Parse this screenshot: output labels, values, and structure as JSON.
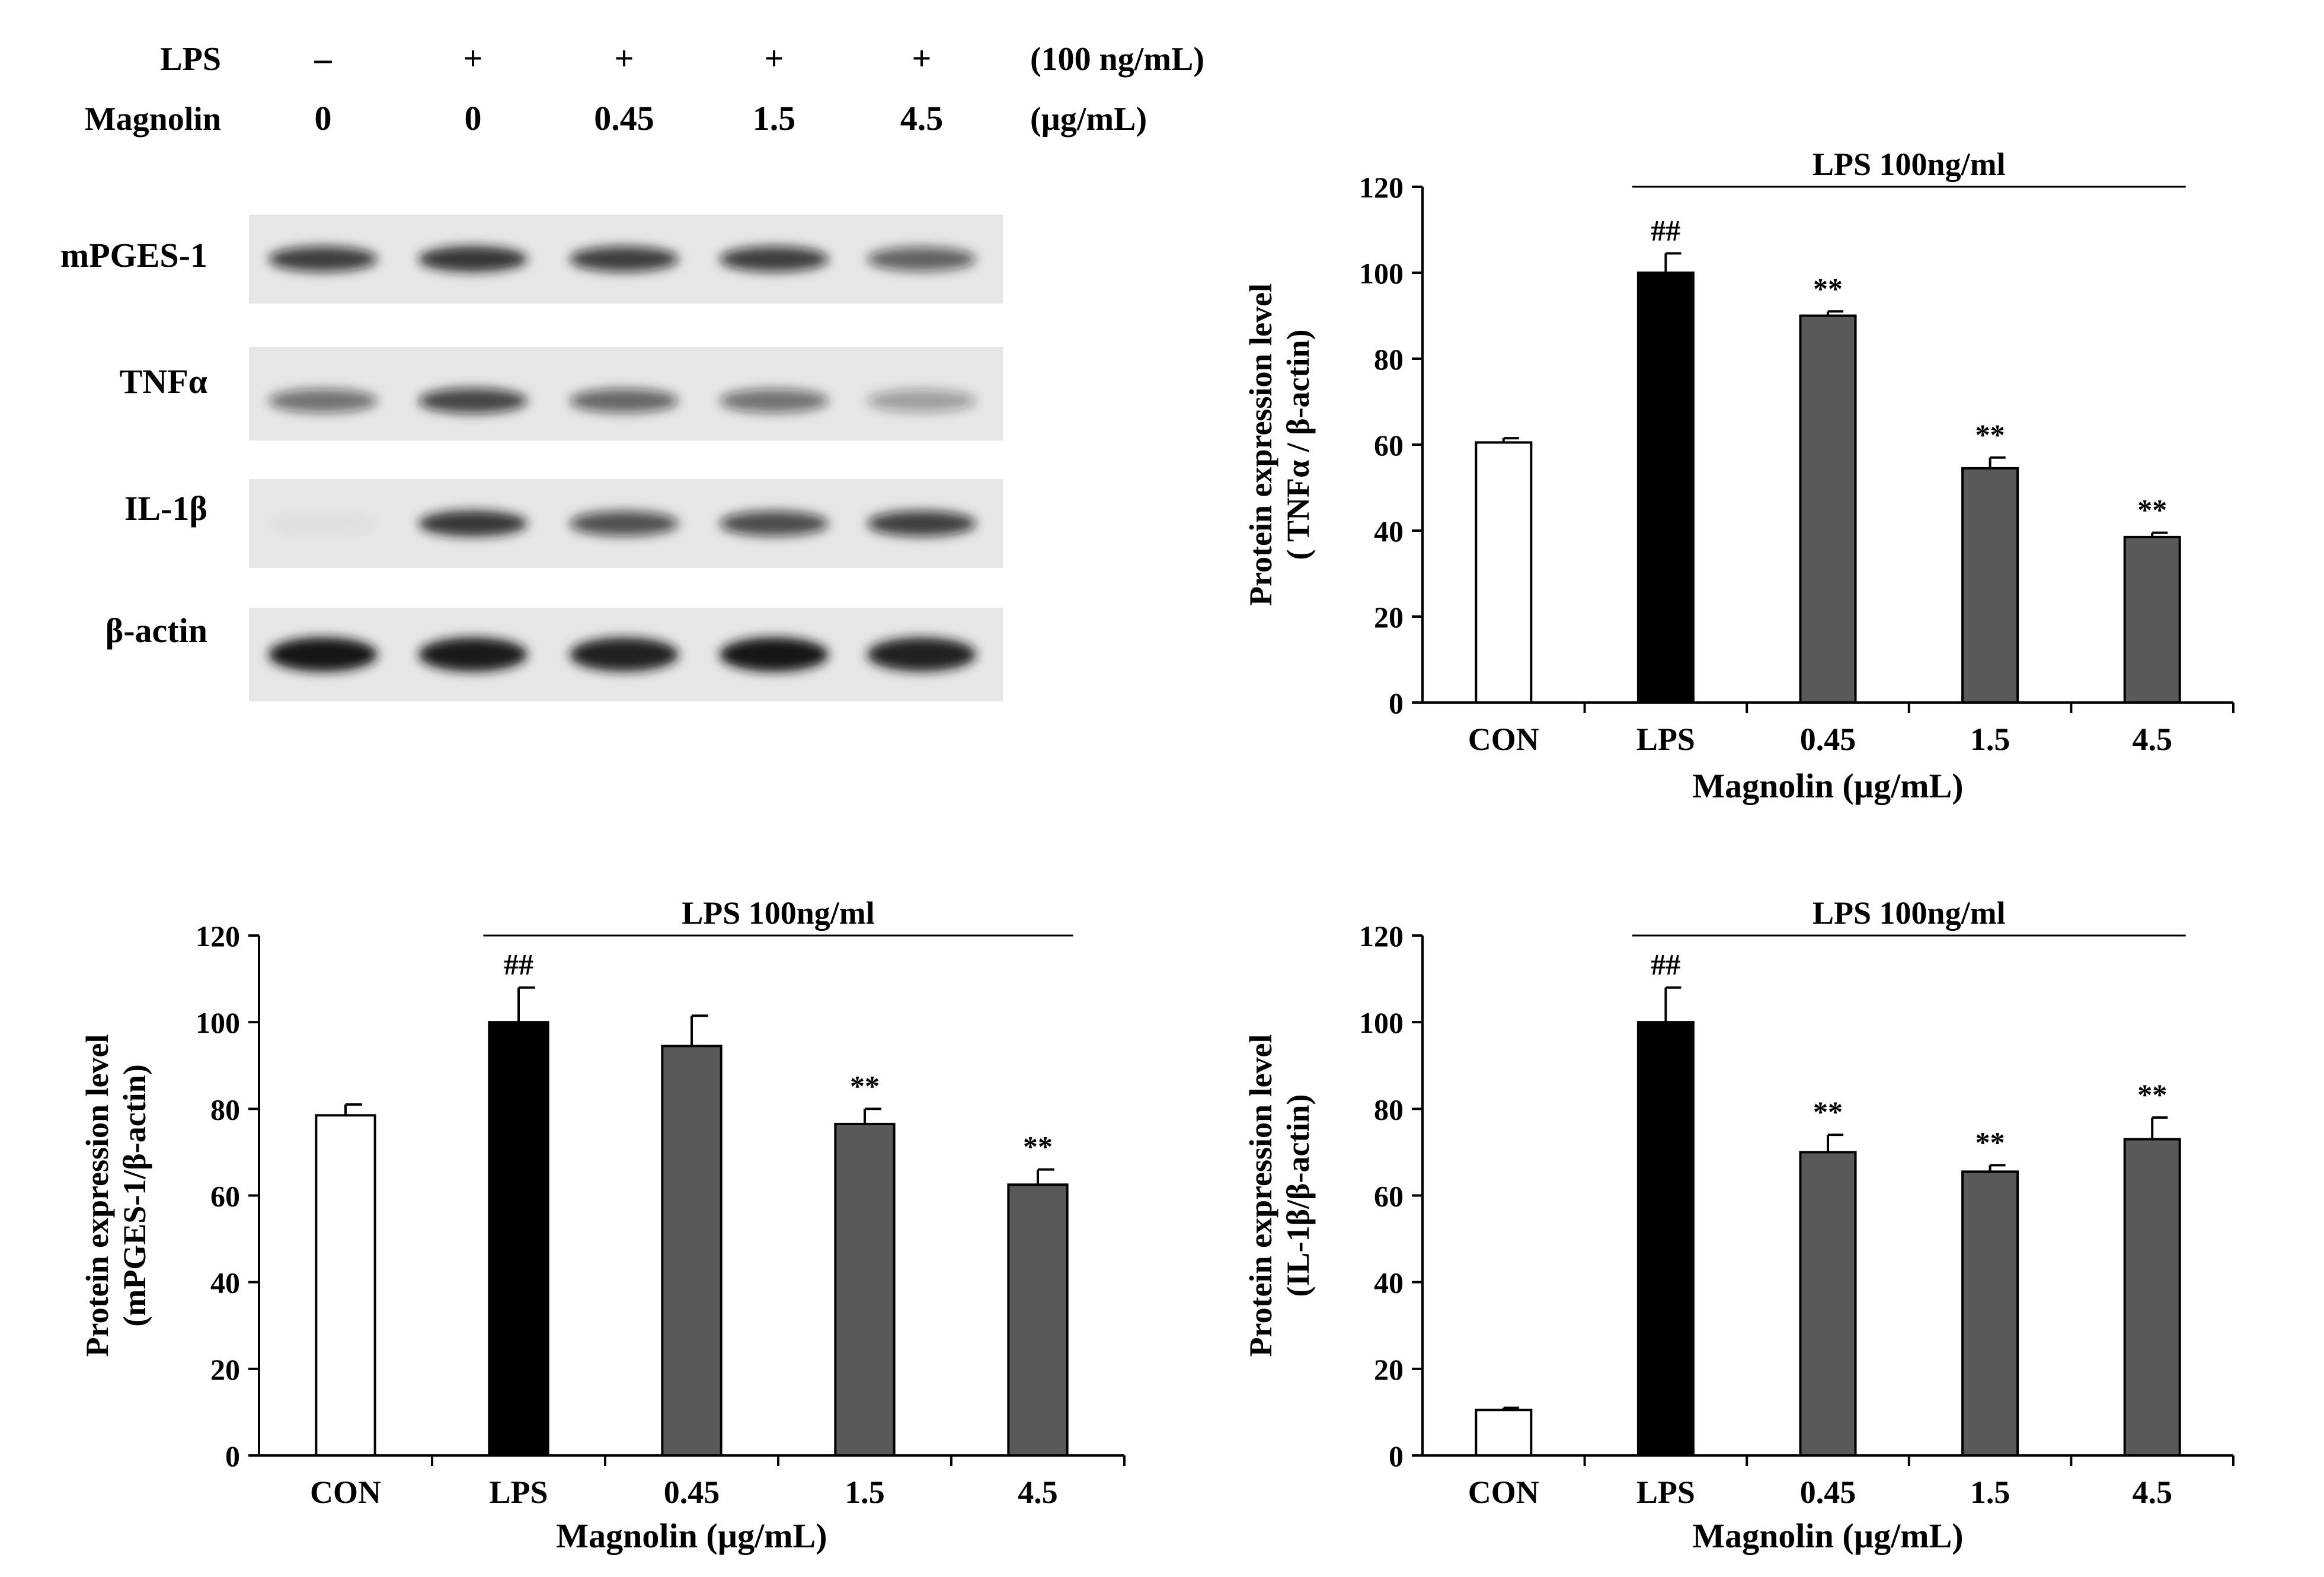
{
  "western_blot": {
    "treatment_rows": [
      {
        "label": "LPS",
        "values": [
          "–",
          "+",
          "+",
          "+",
          "+"
        ],
        "unit": "(100 ng/mL)"
      },
      {
        "label": "Magnolin",
        "values": [
          "0",
          "0",
          "0.45",
          "1.5",
          "4.5"
        ],
        "unit": "(µg/mL)"
      }
    ],
    "bands": [
      {
        "label": "mPGES-1",
        "intensity": [
          0.78,
          0.85,
          0.78,
          0.78,
          0.62
        ]
      },
      {
        "label": "TNFα",
        "intensity": [
          0.55,
          0.75,
          0.6,
          0.55,
          0.35
        ]
      },
      {
        "label": "IL-1β",
        "intensity": [
          0.03,
          0.85,
          0.7,
          0.72,
          0.78
        ]
      },
      {
        "label": "β-actin",
        "intensity": [
          1.0,
          0.98,
          0.95,
          1.0,
          0.95
        ]
      }
    ],
    "colors": {
      "background": "#e6e6e6",
      "band": "#141414"
    }
  },
  "chart_data": [
    {
      "type": "bar",
      "categories": [
        "CON",
        "LPS",
        "0.45",
        "1.5",
        "4.5"
      ],
      "values": [
        60.5,
        100,
        90,
        54.5,
        38.5
      ],
      "errors": [
        1,
        4.5,
        1,
        2.5,
        1
      ],
      "significance": [
        "",
        "##",
        "**",
        "**",
        "**"
      ],
      "bar_colors": [
        "#ffffff",
        "#000000",
        "#595959",
        "#595959",
        "#595959"
      ],
      "ylim": [
        0,
        120
      ],
      "yticks": [
        0,
        20,
        40,
        60,
        80,
        100,
        120
      ],
      "ylabel_line1": "Protein expression level",
      "ylabel_line2": "( TNFα / β-actin)",
      "xlabel": "Magnolin (µg/mL)",
      "bracket_label": "LPS 100ng/ml"
    },
    {
      "type": "bar",
      "categories": [
        "CON",
        "LPS",
        "0.45",
        "1.5",
        "4.5"
      ],
      "values": [
        78.5,
        100,
        94.5,
        76.5,
        62.5
      ],
      "errors": [
        2.5,
        8,
        7,
        3.5,
        3.5
      ],
      "significance": [
        "",
        "##",
        "",
        "**",
        "**"
      ],
      "bar_colors": [
        "#ffffff",
        "#000000",
        "#595959",
        "#595959",
        "#595959"
      ],
      "ylim": [
        0,
        120
      ],
      "yticks": [
        0,
        20,
        40,
        60,
        80,
        100,
        120
      ],
      "ylabel_line1": "Protein expression level",
      "ylabel_line2": "(mPGES-1/β-actin)",
      "xlabel": "Magnolin (µg/mL)",
      "bracket_label": "LPS 100ng/ml"
    },
    {
      "type": "bar",
      "categories": [
        "CON",
        "LPS",
        "0.45",
        "1.5",
        "4.5"
      ],
      "values": [
        10.5,
        100,
        70,
        65.5,
        73
      ],
      "errors": [
        0.5,
        8,
        4,
        1.5,
        5
      ],
      "significance": [
        "",
        "##",
        "**",
        "**",
        "**"
      ],
      "bar_colors": [
        "#ffffff",
        "#000000",
        "#595959",
        "#595959",
        "#595959"
      ],
      "ylim": [
        0,
        120
      ],
      "yticks": [
        0,
        20,
        40,
        60,
        80,
        100,
        120
      ],
      "ylabel_line1": "Protein expression level",
      "ylabel_line2": "(IL-1β/β-actin)",
      "xlabel": "Magnolin (µg/mL)",
      "bracket_label": "LPS 100ng/ml"
    }
  ]
}
